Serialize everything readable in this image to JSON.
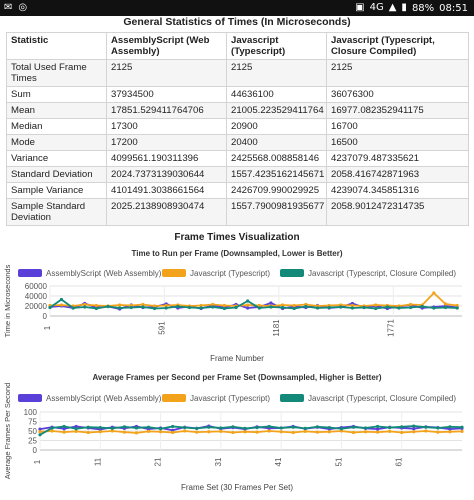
{
  "status_bar": {
    "battery": "88%",
    "time": "08:51",
    "network": "4G"
  },
  "page_title": "General Statistics of Times (In Microseconds)",
  "table": {
    "headers": [
      "Statistic",
      "AssemblyScript (Web Assembly)",
      "Javascript (Typescript)",
      "Javascript (Typescript, Closure Compiled)"
    ],
    "rows": [
      [
        "Total Used Frame Times",
        "2125",
        "2125",
        "2125"
      ],
      [
        "Sum",
        "37934500",
        "44636100",
        "36076300"
      ],
      [
        "Mean",
        "17851.529411764706",
        "21005.223529411764",
        "16977.082352941175"
      ],
      [
        "Median",
        "17300",
        "20900",
        "16700"
      ],
      [
        "Mode",
        "17200",
        "20400",
        "16500"
      ],
      [
        "Variance",
        "4099561.190311396",
        "2425568.008858146",
        "4237079.487335621"
      ],
      [
        "Standard Deviation",
        "2024.7373139030644",
        "1557.4235162145671",
        "2058.416742871963"
      ],
      [
        "Sample Variance",
        "4101491.3038661564",
        "2426709.990029925",
        "4239074.345851316"
      ],
      [
        "Sample Standard Deviation",
        "2025.2138908930474",
        "1557.7900981935677",
        "2058.9012472314735"
      ]
    ]
  },
  "viz_title": "Frame Times Visualization",
  "colors": {
    "assemblyscript": "#5b3fd9",
    "typescript": "#f2a31b",
    "closure": "#13897a"
  },
  "chart_data": [
    {
      "type": "line",
      "title": "Time to Run per Frame (Downsampled, Lower is Better)",
      "xlabel": "Frame Number",
      "ylabel": "Time in Microseconds",
      "x_ticks": [
        "1",
        "591",
        "1181",
        "1771"
      ],
      "x_tick_values": [
        1,
        591,
        1181,
        1771
      ],
      "xlim": [
        1,
        2125
      ],
      "y_ticks": [
        "0",
        "20000",
        "40000",
        "60000"
      ],
      "ylim": [
        0,
        60000
      ],
      "legend": "top",
      "series": [
        {
          "name": "AssemblyScript (Web Assembly)",
          "x": [
            1,
            60,
            120,
            180,
            240,
            300,
            360,
            420,
            480,
            540,
            600,
            660,
            720,
            780,
            840,
            900,
            960,
            1020,
            1080,
            1140,
            1200,
            1260,
            1320,
            1380,
            1440,
            1500,
            1560,
            1620,
            1680,
            1740,
            1800,
            1860,
            1920,
            1980,
            2040,
            2100
          ],
          "values": [
            18000,
            20000,
            16000,
            25000,
            17000,
            19000,
            14000,
            22000,
            17000,
            18000,
            24000,
            16000,
            19000,
            15000,
            21000,
            17000,
            23000,
            16000,
            18000,
            26000,
            15000,
            19000,
            17000,
            21000,
            16000,
            18000,
            25000,
            17000,
            20000,
            15000,
            19000,
            22000,
            16000,
            18000,
            20000,
            17000
          ]
        },
        {
          "name": "Javascript (Typescript)",
          "x": [
            1,
            60,
            120,
            180,
            240,
            300,
            360,
            420,
            480,
            540,
            600,
            660,
            720,
            780,
            840,
            900,
            960,
            1020,
            1080,
            1140,
            1200,
            1260,
            1320,
            1380,
            1440,
            1500,
            1560,
            1620,
            1680,
            1740,
            1800,
            1860,
            1920,
            1980,
            2040,
            2100
          ],
          "values": [
            21000,
            22000,
            20000,
            23000,
            21000,
            20000,
            22000,
            21000,
            23000,
            20000,
            21000,
            22000,
            20000,
            21000,
            23000,
            21000,
            20000,
            22000,
            21000,
            20000,
            22000,
            21000,
            23000,
            20000,
            21000,
            22000,
            21000,
            20000,
            22000,
            21000,
            20000,
            23000,
            22000,
            46000,
            24000,
            21000
          ]
        },
        {
          "name": "Javascript (Typescript, Closure Compiled)",
          "x": [
            1,
            60,
            120,
            180,
            240,
            300,
            360,
            420,
            480,
            540,
            600,
            660,
            720,
            780,
            840,
            900,
            960,
            1020,
            1080,
            1140,
            1200,
            1260,
            1320,
            1380,
            1440,
            1500,
            1560,
            1620,
            1680,
            1740,
            1800,
            1860,
            1920,
            1980,
            2040,
            2100
          ],
          "values": [
            17000,
            33000,
            16000,
            18000,
            15000,
            19000,
            16000,
            17000,
            18000,
            15000,
            16000,
            19000,
            17000,
            16000,
            18000,
            15000,
            17000,
            30000,
            16000,
            18000,
            17000,
            15000,
            19000,
            16000,
            17000,
            18000,
            16000,
            17000,
            15000,
            18000,
            16000,
            17000,
            19000,
            16000,
            17000,
            16000
          ]
        }
      ]
    },
    {
      "type": "line",
      "title": "Average Frames per Second per Frame Set (Downsampled, Higher is Better)",
      "xlabel": "Frame Set (30 Frames Per Set)",
      "ylabel": "Average Frames Per Second",
      "x_ticks": [
        "1",
        "11",
        "21",
        "31",
        "41",
        "51",
        "61"
      ],
      "x_tick_values": [
        1,
        11,
        21,
        31,
        41,
        51,
        61
      ],
      "xlim": [
        1,
        71
      ],
      "y_ticks": [
        "0",
        "25",
        "50",
        "75",
        "100"
      ],
      "ylim": [
        0,
        100
      ],
      "legend": "top",
      "series": [
        {
          "name": "AssemblyScript (Web Assembly)",
          "x": [
            1,
            3,
            5,
            7,
            9,
            11,
            13,
            15,
            17,
            19,
            21,
            23,
            25,
            27,
            29,
            31,
            33,
            35,
            37,
            39,
            41,
            43,
            45,
            47,
            49,
            51,
            53,
            55,
            57,
            59,
            61,
            63,
            65,
            67,
            69,
            71
          ],
          "values": [
            55,
            60,
            56,
            62,
            58,
            54,
            60,
            57,
            62,
            55,
            58,
            52,
            60,
            57,
            63,
            56,
            59,
            55,
            61,
            57,
            58,
            62,
            56,
            60,
            55,
            59,
            62,
            57,
            55,
            60,
            58,
            56,
            61,
            59,
            55,
            57
          ]
        },
        {
          "name": "Javascript (Typescript)",
          "x": [
            1,
            3,
            5,
            7,
            9,
            11,
            13,
            15,
            17,
            19,
            21,
            23,
            25,
            27,
            29,
            31,
            33,
            35,
            37,
            39,
            41,
            43,
            45,
            47,
            49,
            51,
            53,
            55,
            57,
            59,
            61,
            63,
            65,
            67,
            69,
            71
          ],
          "values": [
            48,
            50,
            47,
            49,
            46,
            48,
            50,
            47,
            45,
            49,
            48,
            46,
            50,
            47,
            48,
            49,
            46,
            48,
            47,
            50,
            48,
            46,
            49,
            47,
            48,
            50,
            46,
            48,
            47,
            49,
            46,
            48,
            50,
            47,
            48,
            49
          ]
        },
        {
          "name": "Javascript (Typescript, Closure Compiled)",
          "x": [
            1,
            3,
            5,
            7,
            9,
            11,
            13,
            15,
            17,
            19,
            21,
            23,
            25,
            27,
            29,
            31,
            33,
            35,
            37,
            39,
            41,
            43,
            45,
            47,
            49,
            51,
            53,
            55,
            57,
            59,
            61,
            63,
            65,
            67,
            69,
            71
          ],
          "values": [
            40,
            58,
            62,
            56,
            60,
            59,
            57,
            61,
            58,
            60,
            56,
            62,
            59,
            57,
            60,
            58,
            61,
            57,
            59,
            62,
            58,
            60,
            57,
            61,
            59,
            56,
            60,
            58,
            62,
            59,
            61,
            63,
            60,
            58,
            61,
            60
          ]
        }
      ]
    }
  ]
}
